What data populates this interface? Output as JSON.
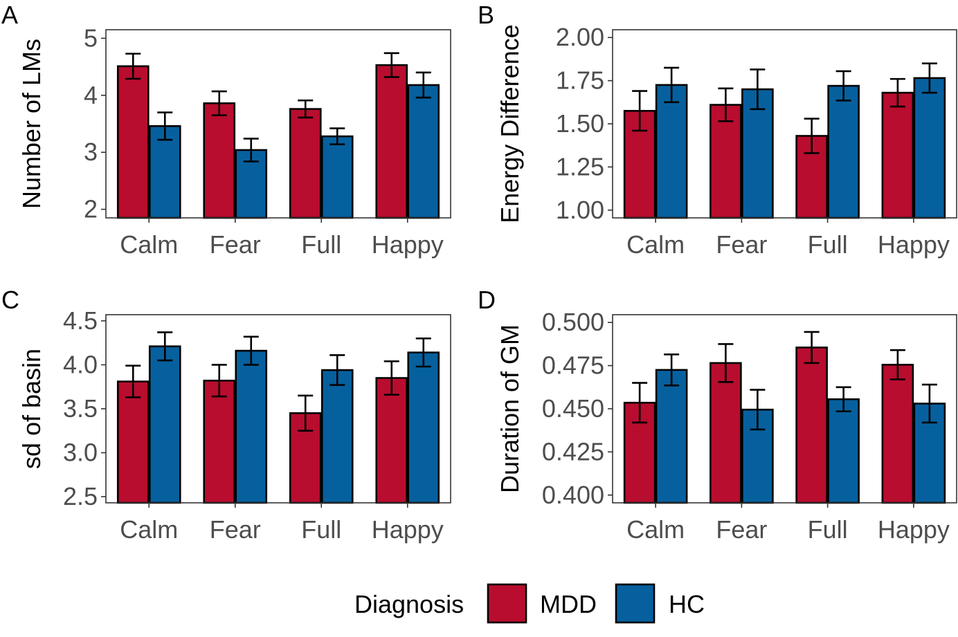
{
  "legend": {
    "title": "Diagnosis",
    "items": [
      {
        "label": "MDD",
        "color": "#b80d2e"
      },
      {
        "label": "HC",
        "color": "#07609e"
      }
    ]
  },
  "chart_data": [
    {
      "panel": "A",
      "type": "bar",
      "categories": [
        "Calm",
        "Fear",
        "Full",
        "Happy"
      ],
      "ylabel": "Number of LMs",
      "xlabel": "",
      "ylim": [
        1.85,
        5.15
      ],
      "yticks": [
        2,
        3,
        4,
        5
      ],
      "tick_decimals": 0,
      "grid": false,
      "series": [
        {
          "name": "MDD",
          "color": "#b80d2e",
          "values": [
            4.51,
            3.86,
            3.76,
            4.53
          ],
          "err": [
            0.22,
            0.21,
            0.15,
            0.21
          ]
        },
        {
          "name": "HC",
          "color": "#07609e",
          "values": [
            3.46,
            3.04,
            3.28,
            4.18
          ],
          "err": [
            0.24,
            0.2,
            0.14,
            0.22
          ]
        }
      ]
    },
    {
      "panel": "B",
      "type": "bar",
      "categories": [
        "Calm",
        "Fear",
        "Full",
        "Happy"
      ],
      "ylabel": "Energy Difference",
      "xlabel": "",
      "ylim": [
        0.955,
        2.045
      ],
      "yticks": [
        1.0,
        1.25,
        1.5,
        1.75,
        2.0
      ],
      "tick_decimals": 2,
      "grid": false,
      "series": [
        {
          "name": "MDD",
          "color": "#b80d2e",
          "values": [
            1.575,
            1.61,
            1.43,
            1.68
          ],
          "err": [
            0.115,
            0.095,
            0.1,
            0.08
          ]
        },
        {
          "name": "HC",
          "color": "#07609e",
          "values": [
            1.725,
            1.7,
            1.72,
            1.765
          ],
          "err": [
            0.1,
            0.115,
            0.085,
            0.085
          ]
        }
      ]
    },
    {
      "panel": "C",
      "type": "bar",
      "categories": [
        "Calm",
        "Fear",
        "Full",
        "Happy"
      ],
      "ylabel": "sd of basin",
      "xlabel": "",
      "ylim": [
        2.43,
        4.57
      ],
      "yticks": [
        2.5,
        3.0,
        3.5,
        4.0,
        4.5
      ],
      "tick_decimals": 1,
      "grid": false,
      "series": [
        {
          "name": "MDD",
          "color": "#b80d2e",
          "values": [
            3.81,
            3.82,
            3.45,
            3.85
          ],
          "err": [
            0.18,
            0.18,
            0.2,
            0.19
          ]
        },
        {
          "name": "HC",
          "color": "#07609e",
          "values": [
            4.21,
            4.16,
            3.94,
            4.14
          ],
          "err": [
            0.16,
            0.16,
            0.17,
            0.16
          ]
        }
      ]
    },
    {
      "panel": "D",
      "type": "bar",
      "categories": [
        "Calm",
        "Fear",
        "Full",
        "Happy"
      ],
      "ylabel": "Duration of GM",
      "xlabel": "",
      "ylim": [
        0.3955,
        0.5045
      ],
      "yticks": [
        0.4,
        0.425,
        0.45,
        0.475,
        0.5
      ],
      "tick_decimals": 3,
      "grid": false,
      "series": [
        {
          "name": "MDD",
          "color": "#b80d2e",
          "values": [
            0.4535,
            0.4765,
            0.4855,
            0.4755
          ],
          "err": [
            0.0115,
            0.011,
            0.009,
            0.0085
          ]
        },
        {
          "name": "HC",
          "color": "#07609e",
          "values": [
            0.4725,
            0.4495,
            0.4555,
            0.453
          ],
          "err": [
            0.009,
            0.0115,
            0.007,
            0.011
          ]
        }
      ]
    }
  ]
}
